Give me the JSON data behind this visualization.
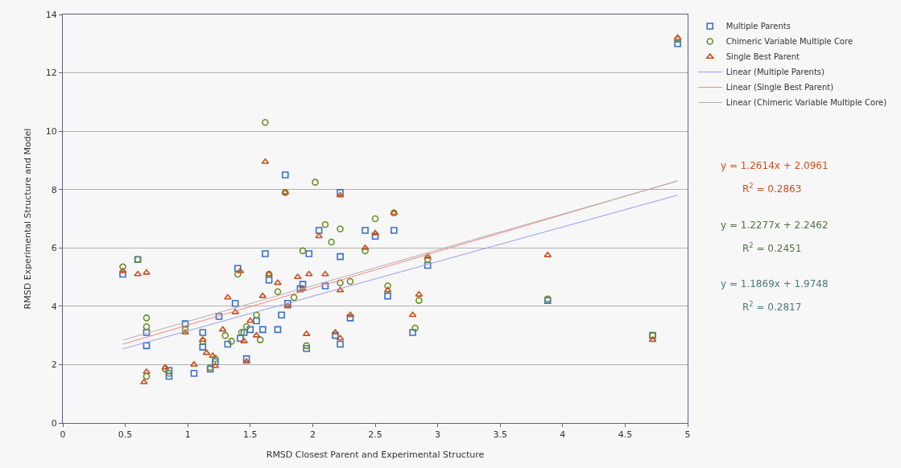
{
  "chart_data": {
    "type": "scatter",
    "xlabel": "RMSD Closest Parent and Experimental Structure",
    "ylabel": "RMSD Experimental Structure and Model",
    "xlim": [
      0,
      5
    ],
    "xticks": [
      0,
      0.5,
      1,
      1.5,
      2,
      2.5,
      3,
      3.5,
      4,
      4.5,
      5
    ],
    "ylim": [
      0,
      14
    ],
    "yticks": [
      0,
      2,
      4,
      6,
      8,
      10,
      12,
      14
    ],
    "grid": "y",
    "legend": "top right",
    "series": [
      {
        "name": "Multiple Parents",
        "color": "#3a6fc4",
        "marker": "square",
        "x": [
          0.48,
          0.6,
          0.67,
          0.67,
          0.85,
          0.85,
          0.98,
          1.05,
          1.12,
          1.12,
          1.18,
          1.22,
          1.25,
          1.32,
          1.38,
          1.4,
          1.42,
          1.45,
          1.47,
          1.5,
          1.55,
          1.6,
          1.62,
          1.65,
          1.72,
          1.75,
          1.78,
          1.8,
          1.9,
          1.92,
          1.95,
          1.97,
          2.05,
          2.1,
          2.18,
          2.22,
          2.22,
          2.22,
          2.3,
          2.42,
          2.5,
          2.6,
          2.65,
          2.8,
          2.92,
          3.88,
          4.72,
          4.92
        ],
        "values": [
          5.1,
          5.6,
          2.65,
          3.1,
          1.8,
          1.6,
          3.4,
          1.7,
          3.1,
          2.6,
          1.85,
          2.1,
          3.65,
          2.7,
          4.1,
          5.3,
          2.9,
          3.1,
          2.2,
          3.2,
          3.5,
          3.2,
          5.8,
          4.9,
          3.2,
          3.7,
          8.5,
          4.1,
          4.6,
          4.75,
          2.55,
          5.8,
          6.6,
          4.7,
          3.0,
          7.9,
          5.7,
          2.7,
          3.6,
          6.6,
          6.4,
          4.35,
          6.6,
          3.1,
          5.4,
          4.2,
          3.0,
          13.0
        ]
      },
      {
        "name": "Chimeric Variable Multiple Core",
        "color": "#6b8e23",
        "marker": "circle",
        "x": [
          0.48,
          0.6,
          0.67,
          0.67,
          0.67,
          0.82,
          0.85,
          0.98,
          1.12,
          1.18,
          1.22,
          1.3,
          1.35,
          1.4,
          1.43,
          1.47,
          1.55,
          1.58,
          1.62,
          1.65,
          1.72,
          1.78,
          1.85,
          1.92,
          1.95,
          2.02,
          2.1,
          2.15,
          2.22,
          2.22,
          2.3,
          2.42,
          2.5,
          2.6,
          2.65,
          2.82,
          2.85,
          2.92,
          3.88,
          4.72,
          4.92
        ],
        "values": [
          5.35,
          5.6,
          3.6,
          3.3,
          1.6,
          1.85,
          1.7,
          3.2,
          2.8,
          1.9,
          2.2,
          3.0,
          2.8,
          5.1,
          3.1,
          3.3,
          3.7,
          2.85,
          10.3,
          5.1,
          4.5,
          7.9,
          4.3,
          5.9,
          2.65,
          8.25,
          6.8,
          6.2,
          6.65,
          4.8,
          4.85,
          5.9,
          7.0,
          4.7,
          7.2,
          3.25,
          4.2,
          5.6,
          4.25,
          3.0,
          13.15
        ]
      },
      {
        "name": "Single Best Parent",
        "color": "#c8501e",
        "marker": "triangle",
        "x": [
          0.48,
          0.6,
          0.67,
          0.65,
          0.67,
          0.82,
          0.98,
          1.05,
          1.12,
          1.15,
          1.2,
          1.22,
          1.28,
          1.32,
          1.38,
          1.42,
          1.45,
          1.47,
          1.5,
          1.55,
          1.6,
          1.62,
          1.65,
          1.72,
          1.78,
          1.8,
          1.88,
          1.92,
          1.95,
          1.97,
          2.05,
          2.1,
          2.18,
          2.22,
          2.22,
          2.22,
          2.3,
          2.42,
          2.5,
          2.6,
          2.65,
          2.8,
          2.85,
          2.92,
          3.88,
          4.72,
          4.92
        ],
        "values": [
          5.2,
          5.1,
          5.15,
          1.4,
          1.75,
          1.9,
          3.1,
          2.0,
          2.85,
          2.4,
          2.3,
          1.95,
          3.2,
          4.3,
          3.8,
          5.2,
          2.8,
          2.1,
          3.5,
          3.0,
          4.35,
          8.95,
          5.1,
          4.8,
          7.9,
          4.0,
          5.0,
          4.6,
          3.05,
          5.1,
          6.4,
          5.1,
          3.1,
          7.8,
          4.55,
          2.9,
          3.7,
          6.0,
          6.5,
          4.55,
          7.2,
          3.7,
          4.4,
          5.7,
          5.75,
          2.85,
          13.2
        ]
      },
      {
        "name": "Linear (Multiple Parents)",
        "type": "line",
        "color": "#9999ff",
        "marker": "none",
        "x": [
          0.48,
          4.92
        ],
        "values": [
          2.54,
          7.81
        ]
      },
      {
        "name": "Linear (Single Best Parent)",
        "type": "line",
        "color": "#ff8080",
        "marker": "none",
        "x": [
          0.48,
          4.92
        ],
        "values": [
          2.7,
          8.3
        ]
      },
      {
        "name": "Linear (Chimeric Variable Multiple Core)",
        "type": "line",
        "color": "#b0b0b0",
        "marker": "none",
        "x": [
          0.48,
          4.92
        ],
        "values": [
          2.84,
          8.29
        ]
      }
    ],
    "annotations": [
      "y = 1.2614x + 2.0961",
      "R$^{2}$ = 0.2863",
      "y = 1.2277x + 2.2462",
      "R$^{2}$ = 0.2451",
      "y = 1.1869x + 1.9748",
      "R$^{2}$ = 0.2817"
    ]
  }
}
